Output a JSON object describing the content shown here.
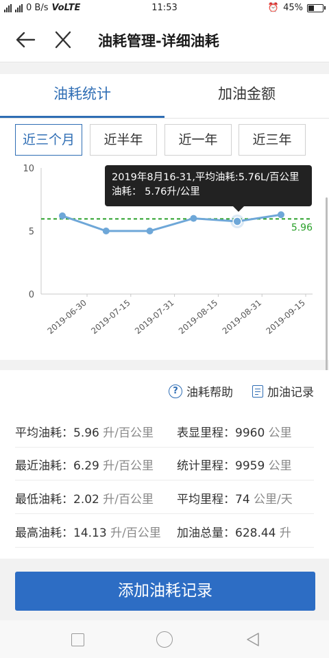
{
  "status_bar": {
    "network_speed": "0 B/s",
    "volte": "VoLTE",
    "time": "11:53",
    "battery_percent": "45%",
    "battery_level": 0.45
  },
  "header": {
    "title": "油耗管理-详细油耗",
    "back_icon": "arrow-left-icon",
    "close_icon": "close-icon"
  },
  "tabs": [
    {
      "label": "油耗统计",
      "active": true
    },
    {
      "label": "加油金额",
      "active": false
    }
  ],
  "ranges": [
    {
      "label": "近三个月",
      "active": true
    },
    {
      "label": "近半年",
      "active": false
    },
    {
      "label": "近一年",
      "active": false
    },
    {
      "label": "近三年",
      "active": false
    }
  ],
  "tooltip": {
    "line1": "2019年8月16-31,平均油耗:5.76L/百公里",
    "line2": "油耗：  5.76升/公里"
  },
  "chart_data": {
    "type": "line",
    "x": [
      "2019-06-30",
      "2019-07-15",
      "2019-07-31",
      "2019-08-15",
      "2019-08-31",
      "2019-09-15"
    ],
    "series": [
      {
        "values": [
          6.2,
          5.0,
          5.0,
          6.0,
          5.76,
          6.29
        ],
        "color": "#6ea7d8"
      }
    ],
    "average": {
      "value": 5.96,
      "label": "5.96",
      "color": "#2aa02a"
    },
    "y_ticks": [
      0,
      5,
      10
    ],
    "ylim": [
      0,
      10
    ],
    "highlight_index": 4
  },
  "links": {
    "help_label": "油耗帮助",
    "record_label": "加油记录"
  },
  "stats": [
    {
      "left": {
        "label": "平均油耗：",
        "value": "5.96",
        "unit": "升/百公里"
      },
      "right": {
        "label": "表显里程：",
        "value": "9960",
        "unit": "公里"
      }
    },
    {
      "left": {
        "label": "最近油耗：",
        "value": "6.29",
        "unit": "升/百公里"
      },
      "right": {
        "label": "统计里程：",
        "value": "9959",
        "unit": "公里"
      }
    },
    {
      "left": {
        "label": "最低油耗：",
        "value": "2.02",
        "unit": "升/百公里"
      },
      "right": {
        "label": "平均里程：",
        "value": "74",
        "unit": "公里/天"
      }
    },
    {
      "left": {
        "label": "最高油耗：",
        "value": "14.13",
        "unit": "升/百公里"
      },
      "right": {
        "label": "加油总量：",
        "value": "628.44",
        "unit": "升"
      }
    }
  ],
  "add_button_label": "添加油耗记录"
}
